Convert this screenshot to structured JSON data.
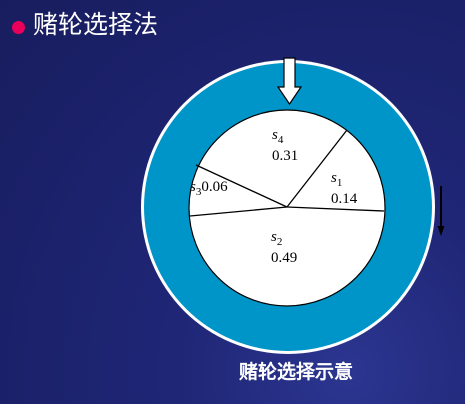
{
  "slide": {
    "title": "赌轮选择法",
    "caption": "赌轮选择示意",
    "bullet_color": "#e8005a",
    "background_color": "#1f2676"
  },
  "wheel": {
    "ring_color": "#0095c8",
    "inner_color": "#ffffff",
    "sectors": [
      {
        "id": "s1",
        "symbol": "s",
        "subscript": "1",
        "value_text": "0.14",
        "probability": 0.14
      },
      {
        "id": "s2",
        "symbol": "s",
        "subscript": "2",
        "value_text": "0.49",
        "probability": 0.49
      },
      {
        "id": "s3",
        "symbol": "s",
        "subscript": "3",
        "value_text": "0.06",
        "probability": 0.06
      },
      {
        "id": "s4",
        "symbol": "s",
        "subscript": "4",
        "value_text": "0.31",
        "probability": 0.31
      }
    ]
  },
  "pointer": {
    "icon": "down-arrow-icon"
  },
  "rotation": {
    "icon": "rotation-arrow-icon"
  }
}
